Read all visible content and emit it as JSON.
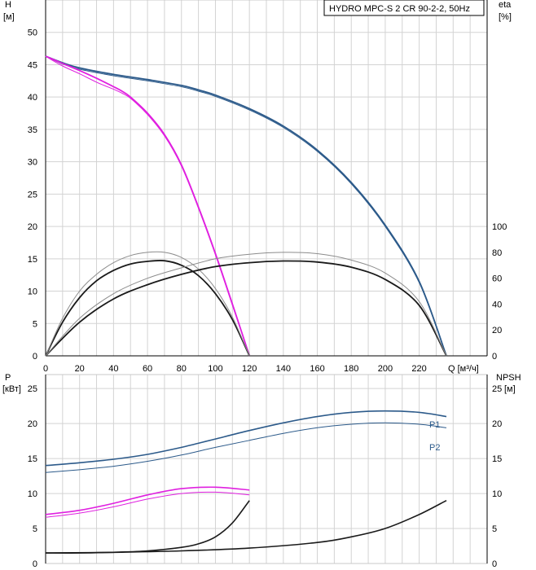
{
  "chart_data": [
    {
      "type": "line",
      "panel": "head-efficiency",
      "title": "HYDRO MPC-S 2 CR 90-2-2, 50Hz",
      "ylabel": "H",
      "yunit": "[м]",
      "y2label": "eta",
      "y2unit": "[%]",
      "xlabel": "Q [м³/ч]",
      "xlim": [
        0,
        260
      ],
      "ylim": [
        0,
        55
      ],
      "y2lim": [
        0,
        100
      ],
      "xticks": [
        0,
        20,
        40,
        60,
        80,
        100,
        120,
        140,
        160,
        180,
        200,
        220
      ],
      "yticks": [
        0,
        5,
        10,
        15,
        20,
        25,
        30,
        35,
        40,
        45,
        50
      ],
      "y2ticks": [
        0,
        20,
        40,
        60,
        80,
        100
      ],
      "grid": true,
      "series": [
        {
          "color": "#2c5a8a",
          "axis": "H",
          "x": [
            0,
            10,
            20,
            40,
            60,
            80,
            90,
            100,
            120,
            140,
            160,
            180,
            200,
            220,
            236
          ],
          "y": [
            46.3,
            45.3,
            44.5,
            43.5,
            42.7,
            41.8,
            41.1,
            40.3,
            38.2,
            35.5,
            31.8,
            26.8,
            20.2,
            11.5,
            0
          ]
        },
        {
          "color": "#2c5a8a",
          "axis": "H",
          "x": [
            0,
            10,
            20,
            40,
            60,
            80,
            90,
            100,
            120,
            140,
            160,
            180,
            200,
            220,
            236
          ],
          "y": [
            46.3,
            45.1,
            44.3,
            43.3,
            42.5,
            41.6,
            40.9,
            40.1,
            38.0,
            35.3,
            31.6,
            26.6,
            20.0,
            11.3,
            0
          ]
        },
        {
          "color": "#e020e0",
          "axis": "H",
          "x": [
            0,
            10,
            20,
            30,
            40,
            45,
            50,
            60,
            70,
            80,
            90,
            100,
            110,
            120
          ],
          "y": [
            46.3,
            45.2,
            44.1,
            42.9,
            41.6,
            40.9,
            40.0,
            37.5,
            34.2,
            29.5,
            23.0,
            15.8,
            8.0,
            0
          ]
        },
        {
          "color": "#e020e0",
          "axis": "H",
          "x": [
            0,
            10,
            20,
            30,
            40,
            45,
            50,
            60,
            70,
            80,
            90,
            100,
            110,
            120
          ],
          "y": [
            46.3,
            44.8,
            43.6,
            42.3,
            41.2,
            40.6,
            39.8,
            37.3,
            34.0,
            29.3,
            22.8,
            15.6,
            7.8,
            0
          ]
        },
        {
          "color": "#1a1a1a",
          "axis": "eta",
          "x": [
            0,
            10,
            20,
            30,
            40,
            50,
            60,
            70,
            80,
            90,
            100,
            110,
            120
          ],
          "y": [
            0,
            26,
            45,
            58,
            66,
            71,
            73,
            73.5,
            70,
            62,
            48,
            28,
            0
          ]
        },
        {
          "color": "#8c8c8c",
          "axis": "eta",
          "x": [
            0,
            10,
            20,
            30,
            40,
            50,
            60,
            70,
            80,
            90,
            100,
            110,
            120
          ],
          "y": [
            0,
            29,
            50,
            63,
            72,
            77.5,
            80,
            80,
            76,
            67,
            52,
            30,
            0
          ]
        },
        {
          "color": "#1a1a1a",
          "axis": "eta",
          "x": [
            0,
            20,
            40,
            60,
            80,
            100,
            120,
            140,
            160,
            180,
            200,
            220,
            236
          ],
          "y": [
            0,
            26,
            44,
            55,
            63,
            69,
            72,
            73.3,
            72.5,
            68.5,
            59,
            39,
            0
          ]
        },
        {
          "color": "#8c8c8c",
          "axis": "eta",
          "x": [
            0,
            20,
            40,
            60,
            80,
            100,
            120,
            140,
            160,
            180,
            200,
            220,
            236
          ],
          "y": [
            0,
            29,
            48,
            60,
            68,
            75,
            78.5,
            80,
            79,
            74,
            64,
            42,
            0
          ]
        }
      ]
    },
    {
      "type": "line",
      "panel": "power-npsh",
      "ylabel": "P",
      "yunit": "[кВт]",
      "y2label": "NPSH",
      "y2unit": "[м]",
      "ylim": [
        0,
        27
      ],
      "yticks": [
        0,
        5,
        10,
        15,
        20,
        25
      ],
      "y2ticks": [
        0,
        5,
        10,
        15,
        20,
        25
      ],
      "grid": true,
      "series": [
        {
          "name": "P1",
          "color": "#2c5a8a",
          "x": [
            0,
            20,
            40,
            60,
            80,
            100,
            120,
            140,
            160,
            180,
            200,
            220,
            236
          ],
          "y": [
            14.0,
            14.4,
            14.9,
            15.6,
            16.6,
            17.8,
            19.0,
            20.1,
            21.0,
            21.6,
            21.8,
            21.6,
            21.0
          ]
        },
        {
          "name": "P2",
          "color": "#2c5a8a",
          "x": [
            0,
            20,
            40,
            60,
            80,
            100,
            120,
            140,
            160,
            180,
            200,
            220,
            236
          ],
          "y": [
            13.0,
            13.4,
            13.9,
            14.6,
            15.5,
            16.6,
            17.6,
            18.6,
            19.4,
            19.9,
            20.1,
            19.9,
            19.4
          ]
        },
        {
          "color": "#e020e0",
          "x": [
            0,
            20,
            40,
            60,
            80,
            100,
            120
          ],
          "y": [
            7.0,
            7.6,
            8.6,
            9.8,
            10.7,
            10.9,
            10.5
          ]
        },
        {
          "color": "#e020e0",
          "x": [
            0,
            20,
            40,
            60,
            80,
            100,
            120
          ],
          "y": [
            6.6,
            7.2,
            8.1,
            9.2,
            10.0,
            10.2,
            9.8
          ]
        },
        {
          "color": "#1a1a1a",
          "x": [
            0,
            20,
            40,
            60,
            80,
            90,
            100,
            110,
            120
          ],
          "y": [
            1.5,
            1.5,
            1.6,
            1.8,
            2.3,
            2.8,
            3.8,
            5.8,
            9.0
          ]
        },
        {
          "color": "#1a1a1a",
          "x": [
            0,
            40,
            80,
            120,
            160,
            180,
            200,
            220,
            236
          ],
          "y": [
            1.5,
            1.6,
            1.8,
            2.2,
            3.0,
            3.8,
            5.0,
            7.0,
            9.0
          ]
        }
      ]
    }
  ]
}
